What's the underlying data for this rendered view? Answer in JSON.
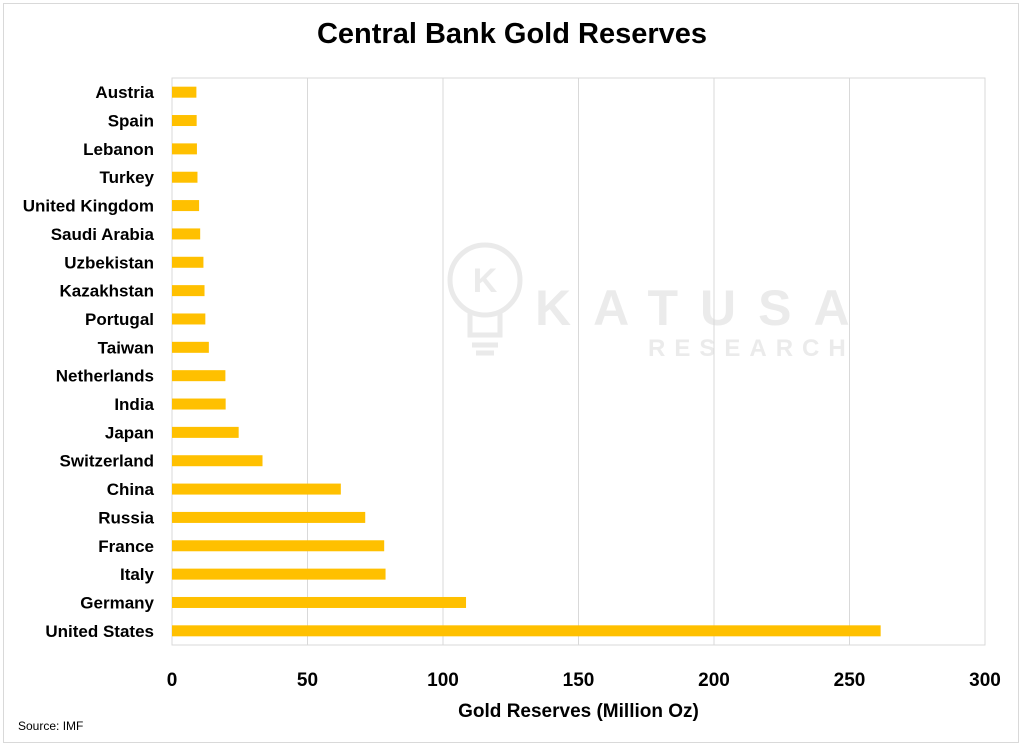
{
  "chart_data": {
    "type": "bar",
    "orientation": "horizontal",
    "title": "Central Bank Gold Reserves",
    "xlabel": "Gold Reserves (Million Oz)",
    "ylabel": "",
    "categories": [
      "Austria",
      "Spain",
      "Lebanon",
      "Turkey",
      "United Kingdom",
      "Saudi Arabia",
      "Uzbekistan",
      "Kazakhstan",
      "Portugal",
      "Taiwan",
      "Netherlands",
      "India",
      "Japan",
      "Switzerland",
      "China",
      "Russia",
      "France",
      "Italy",
      "Germany",
      "United States"
    ],
    "values": [
      9.0,
      9.1,
      9.2,
      9.4,
      10.0,
      10.4,
      11.6,
      12.0,
      12.3,
      13.6,
      19.7,
      19.8,
      24.6,
      33.4,
      62.3,
      71.3,
      78.3,
      78.8,
      108.5,
      261.5
    ],
    "xlim": [
      0,
      300
    ],
    "xticks": [
      0,
      50,
      100,
      150,
      200,
      250,
      300
    ],
    "bar_color": "#ffc000",
    "grid": "vertical",
    "legend": "none"
  },
  "source": "Source: IMF",
  "watermark": {
    "brand": "KATUSA",
    "sub": "RESEARCH",
    "logo_letter": "K"
  }
}
